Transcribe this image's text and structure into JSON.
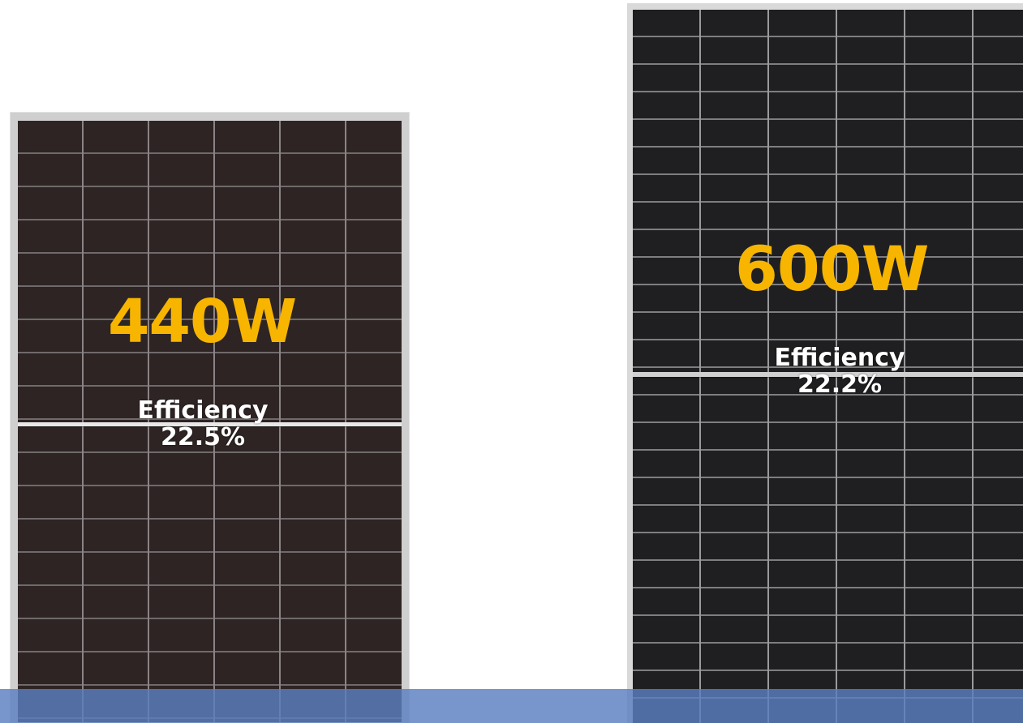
{
  "panels": [
    {
      "id": "left",
      "wattage": "440W",
      "efficiency_label": "Efficiency",
      "efficiency_value": "22.5%"
    },
    {
      "id": "right",
      "wattage": "600W",
      "efficiency_label": "Efficiency",
      "efficiency_value": "22.2%"
    }
  ],
  "colors": {
    "wattage_text": "#f7b500",
    "efficiency_text": "#ffffff",
    "left_cell": "#2e2424",
    "right_cell": "#1f1f21",
    "bottom_band": "#5a7fbf",
    "background": "#ffffff"
  }
}
